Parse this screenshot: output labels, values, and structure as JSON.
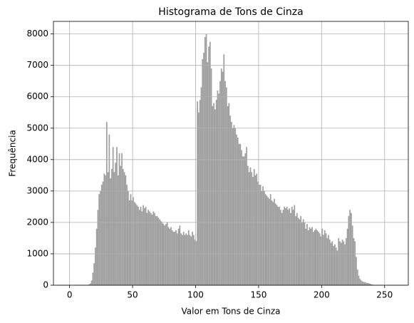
{
  "chart_data": {
    "type": "histogram",
    "title": "Histograma de Tons de Cinza",
    "xlabel": "Valor em Tons de Cinza",
    "ylabel": "Frequência",
    "color": "#a0a0a0",
    "grid": true,
    "xlim": [
      -12.8,
      268.8
    ],
    "ylim": [
      0,
      8400
    ],
    "xticks": [
      0,
      50,
      100,
      150,
      200,
      250
    ],
    "yticks": [
      0,
      1000,
      2000,
      3000,
      4000,
      5000,
      6000,
      7000,
      8000
    ],
    "bins": [
      0,
      1,
      2,
      3,
      4,
      5,
      6,
      7,
      8,
      9,
      10,
      11,
      12,
      13,
      14,
      15,
      16,
      17,
      18,
      19,
      20,
      21,
      22,
      23,
      24,
      25,
      26,
      27,
      28,
      29,
      30,
      31,
      32,
      33,
      34,
      35,
      36,
      37,
      38,
      39,
      40,
      41,
      42,
      43,
      44,
      45,
      46,
      47,
      48,
      49,
      50,
      51,
      52,
      53,
      54,
      55,
      56,
      57,
      58,
      59,
      60,
      61,
      62,
      63,
      64,
      65,
      66,
      67,
      68,
      69,
      70,
      71,
      72,
      73,
      74,
      75,
      76,
      77,
      78,
      79,
      80,
      81,
      82,
      83,
      84,
      85,
      86,
      87,
      88,
      89,
      90,
      91,
      92,
      93,
      94,
      95,
      96,
      97,
      98,
      99,
      100,
      101,
      102,
      103,
      104,
      105,
      106,
      107,
      108,
      109,
      110,
      111,
      112,
      113,
      114,
      115,
      116,
      117,
      118,
      119,
      120,
      121,
      122,
      123,
      124,
      125,
      126,
      127,
      128,
      129,
      130,
      131,
      132,
      133,
      134,
      135,
      136,
      137,
      138,
      139,
      140,
      141,
      142,
      143,
      144,
      145,
      146,
      147,
      148,
      149,
      150,
      151,
      152,
      153,
      154,
      155,
      156,
      157,
      158,
      159,
      160,
      161,
      162,
      163,
      164,
      165,
      166,
      167,
      168,
      169,
      170,
      171,
      172,
      173,
      174,
      175,
      176,
      177,
      178,
      179,
      180,
      181,
      182,
      183,
      184,
      185,
      186,
      187,
      188,
      189,
      190,
      191,
      192,
      193,
      194,
      195,
      196,
      197,
      198,
      199,
      200,
      201,
      202,
      203,
      204,
      205,
      206,
      207,
      208,
      209,
      210,
      211,
      212,
      213,
      214,
      215,
      216,
      217,
      218,
      219,
      220,
      221,
      222,
      223,
      224,
      225,
      226,
      227,
      228,
      229,
      230,
      231,
      232,
      233,
      234,
      235,
      236,
      237,
      238,
      239,
      240,
      241,
      242,
      243,
      244,
      245,
      246,
      247,
      248,
      249,
      250,
      251,
      252,
      253,
      254,
      255,
      256
    ],
    "values": [
      0,
      0,
      0,
      0,
      0,
      0,
      0,
      0,
      0,
      0,
      0,
      0,
      0,
      5,
      10,
      30,
      60,
      150,
      400,
      700,
      1200,
      1800,
      2400,
      2900,
      3000,
      3200,
      3300,
      3550,
      3500,
      5200,
      3600,
      4800,
      3400,
      3700,
      4400,
      3600,
      3900,
      4400,
      3500,
      4200,
      3800,
      4200,
      3700,
      3600,
      3500,
      3200,
      3000,
      2700,
      2900,
      2700,
      2800,
      2650,
      2600,
      2550,
      2500,
      2400,
      2500,
      2350,
      2550,
      2450,
      2500,
      2300,
      2400,
      2350,
      2300,
      2250,
      2350,
      2300,
      2200,
      2200,
      2150,
      2100,
      2050,
      2000,
      1950,
      1900,
      1950,
      2000,
      1850,
      1800,
      1850,
      1750,
      1700,
      1700,
      1750,
      1650,
      1800,
      1900,
      1650,
      1600,
      1700,
      1600,
      1650,
      1600,
      1750,
      1600,
      1550,
      1700,
      1600,
      1450,
      1400,
      5850,
      5500,
      5900,
      6300,
      7200,
      7400,
      7900,
      8000,
      7100,
      7600,
      7750,
      6900,
      5700,
      5800,
      5600,
      5900,
      6200,
      6100,
      6500,
      6900,
      6800,
      7350,
      6500,
      6300,
      5700,
      5800,
      5400,
      5200,
      5000,
      5100,
      5000,
      4800,
      4700,
      4500,
      4500,
      4300,
      4100,
      4100,
      4200,
      4400,
      3800,
      3600,
      3750,
      3600,
      3450,
      3700,
      3500,
      3550,
      3300,
      3200,
      3200,
      3000,
      3150,
      3000,
      2900,
      2850,
      2800,
      2750,
      2900,
      2700,
      2650,
      2750,
      2600,
      2550,
      2500,
      2500,
      2400,
      2300,
      2400,
      2500,
      2450,
      2500,
      2400,
      2450,
      2300,
      2500,
      2400,
      2550,
      2200,
      2300,
      2150,
      2100,
      2200,
      2000,
      2100,
      2000,
      1800,
      1950,
      1750,
      1850,
      1800,
      1850,
      1700,
      1750,
      1800,
      1750,
      1700,
      1650,
      1550,
      1800,
      1600,
      1750,
      1650,
      1500,
      1600,
      1450,
      1350,
      1400,
      1250,
      1300,
      1200,
      1100,
      1500,
      1400,
      1350,
      1450,
      1400,
      1300,
      1500,
      1800,
      2200,
      2400,
      2300,
      1900,
      1500,
      1400,
      900,
      500,
      300,
      200,
      150,
      120,
      100,
      100,
      80,
      70,
      60,
      50,
      30,
      20,
      10,
      5,
      0,
      0,
      0,
      0,
      0,
      0,
      0,
      0,
      0,
      0,
      0,
      0,
      0
    ]
  }
}
